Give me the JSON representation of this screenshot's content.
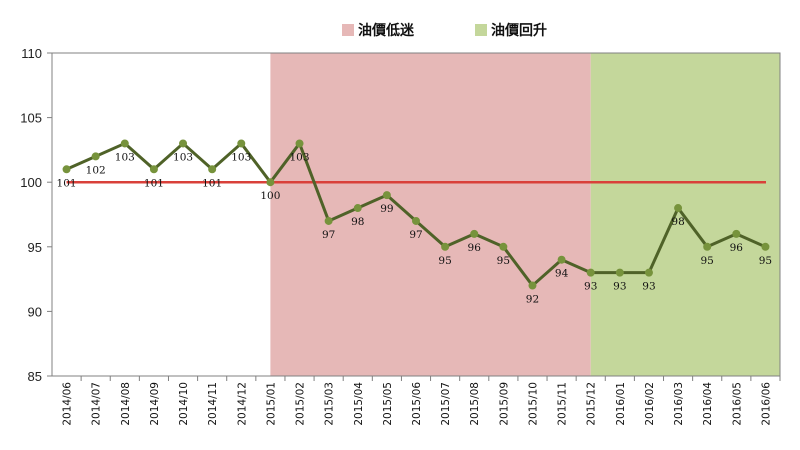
{
  "chart_data": {
    "type": "line",
    "title": "",
    "xlabel": "",
    "ylabel": "",
    "ylim": [
      85,
      110
    ],
    "yticks": [
      85,
      90,
      95,
      100,
      105,
      110
    ],
    "grid": false,
    "legend_position": "top",
    "categories": [
      "2014/06",
      "2014/07",
      "2014/08",
      "2014/09",
      "2014/10",
      "2014/11",
      "2014/12",
      "2015/01",
      "2015/02",
      "2015/03",
      "2015/04",
      "2015/05",
      "2015/06",
      "2015/07",
      "2015/08",
      "2015/09",
      "2015/10",
      "2015/11",
      "2015/12",
      "2016/01",
      "2016/02",
      "2016/03",
      "2016/04",
      "2016/05",
      "2016/06"
    ],
    "series": [
      {
        "values": [
          101,
          102,
          103,
          101,
          103,
          101,
          103,
          100,
          103,
          97,
          98,
          99,
          97,
          95,
          96,
          95,
          92,
          94,
          93,
          93,
          93,
          98,
          95,
          96,
          95
        ],
        "color": "#4f6228"
      }
    ],
    "reference_line": {
      "value": 100,
      "color": "#d9403a"
    },
    "regions": [
      {
        "name": "油價低迷",
        "from": "2015/01",
        "to": "2015/12",
        "color": "#e6b8b7"
      },
      {
        "name": "油價回升",
        "from": "2015/12",
        "to": "2016/06",
        "color": "#c4d79b"
      }
    ]
  }
}
